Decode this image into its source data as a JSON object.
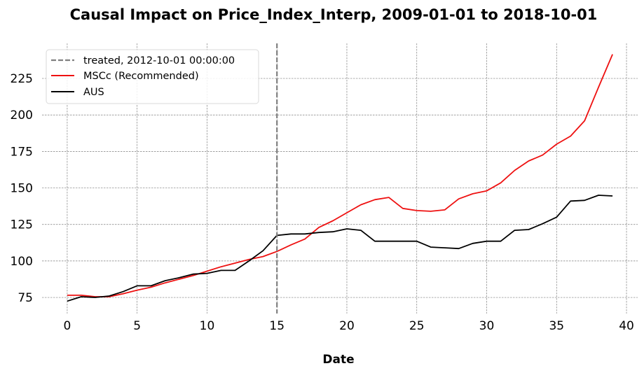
{
  "chart_data": {
    "type": "line",
    "title": "Causal Impact on Price_Index_Interp, 2009-01-01 to 2018-10-01",
    "xlabel": "Date",
    "ylabel": "",
    "xlim": [
      -1.8,
      40.8
    ],
    "ylim": [
      64,
      249
    ],
    "xticks": [
      0,
      5,
      10,
      15,
      20,
      25,
      30,
      35,
      40
    ],
    "yticks": [
      75,
      100,
      125,
      150,
      175,
      200,
      225
    ],
    "grid": true,
    "legend_position": "top-left",
    "treatment": {
      "x": 15,
      "label": "treated, 2012-10-01 00:00:00",
      "color": "#808080"
    },
    "series": [
      {
        "name": "MSCc (Recommended)",
        "color": "#ee1111",
        "x": [
          0,
          1,
          2,
          3,
          4,
          5,
          6,
          7,
          8,
          9,
          10,
          11,
          12,
          13,
          14,
          15,
          16,
          17,
          18,
          19,
          20,
          21,
          22,
          23,
          24,
          25,
          26,
          27,
          28,
          29,
          30,
          31,
          32,
          33,
          34,
          35,
          36,
          37,
          38,
          39
        ],
        "values": [
          76.5,
          76.5,
          75.5,
          75.5,
          77.5,
          80,
          82,
          85,
          87.5,
          90,
          93,
          96,
          98.5,
          101,
          103,
          106.5,
          111,
          115,
          123,
          127.5,
          133,
          138.5,
          142,
          143.5,
          136,
          134.5,
          134,
          135,
          142.5,
          146,
          148,
          153.5,
          162,
          168.5,
          172.5,
          180,
          185.5,
          196,
          219,
          241.5
        ]
      },
      {
        "name": "AUS",
        "color": "#000000",
        "x": [
          0,
          1,
          2,
          3,
          4,
          5,
          6,
          7,
          8,
          9,
          10,
          11,
          12,
          13,
          14,
          15,
          16,
          17,
          18,
          19,
          20,
          21,
          22,
          23,
          24,
          25,
          26,
          27,
          28,
          29,
          30,
          31,
          32,
          33,
          34,
          35,
          36,
          37,
          38,
          39
        ],
        "values": [
          72.5,
          75.5,
          75,
          76,
          79,
          83,
          83,
          86.5,
          88.5,
          91,
          91.5,
          93.5,
          93.5,
          100,
          107,
          117.5,
          118.5,
          118.5,
          119.5,
          120,
          122,
          121,
          113.5,
          113.5,
          113.5,
          113.5,
          109.5,
          109,
          108.5,
          112,
          113.5,
          113.5,
          121,
          121.5,
          125.5,
          130,
          141,
          141.5,
          145,
          144.5
        ]
      }
    ]
  }
}
